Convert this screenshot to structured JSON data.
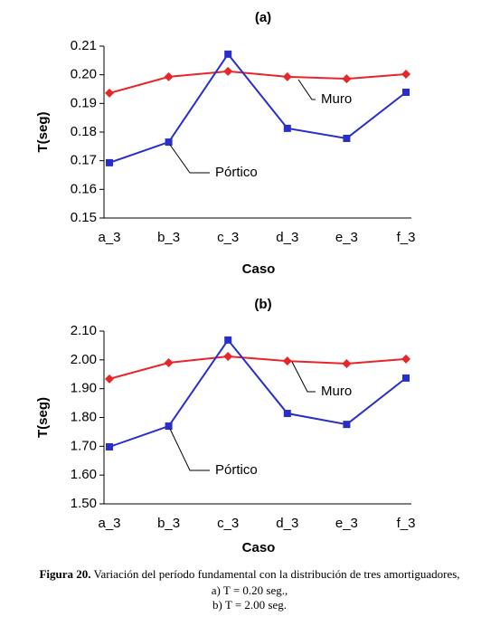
{
  "chart_data": [
    {
      "type": "line",
      "title": "(a)",
      "x_label": "Caso",
      "y_label": "T(seg)",
      "categories": [
        "a_3",
        "b_3",
        "c_3",
        "d_3",
        "e_3",
        "f_3"
      ],
      "series": [
        {
          "name": "Muro",
          "color": "#e8262a",
          "marker": "diamond",
          "values": [
            0.1936,
            0.1993,
            0.2012,
            0.1993,
            0.1986,
            0.2002
          ]
        },
        {
          "name": "Pórtico",
          "color": "#2a2ec8",
          "marker": "square",
          "values": [
            0.1693,
            0.1765,
            0.2072,
            0.1813,
            0.1778,
            0.1939
          ]
        }
      ],
      "ylim": [
        0.15,
        0.21
      ],
      "yticks": [
        {
          "value": 0.15,
          "label": "0.15"
        },
        {
          "value": 0.16,
          "label": "0.16"
        },
        {
          "value": 0.17,
          "label": "0.17"
        },
        {
          "value": 0.18,
          "label": "0.18"
        },
        {
          "value": 0.19,
          "label": "0.19"
        },
        {
          "value": 0.2,
          "label": "0.20"
        },
        {
          "value": 0.21,
          "label": "0.21"
        }
      ]
    },
    {
      "type": "line",
      "title": "(b)",
      "x_label": "Caso",
      "y_label": "T(seg)",
      "categories": [
        "a_3",
        "b_3",
        "c_3",
        "d_3",
        "e_3",
        "f_3"
      ],
      "series": [
        {
          "name": "Muro",
          "color": "#e8262a",
          "marker": "diamond",
          "values": [
            1.934,
            1.99,
            2.012,
            1.996,
            1.987,
            2.003
          ]
        },
        {
          "name": "Pórtico",
          "color": "#2a2ec8",
          "marker": "square",
          "values": [
            1.698,
            1.77,
            2.069,
            1.814,
            1.776,
            1.937
          ]
        }
      ],
      "ylim": [
        1.5,
        2.1
      ],
      "yticks": [
        {
          "value": 1.5,
          "label": "1.50"
        },
        {
          "value": 1.6,
          "label": "1.60"
        },
        {
          "value": 1.7,
          "label": "1.70"
        },
        {
          "value": 1.8,
          "label": "1.80"
        },
        {
          "value": 1.9,
          "label": "1.90"
        },
        {
          "value": 2.0,
          "label": "2.00"
        },
        {
          "value": 2.1,
          "label": "2.10"
        }
      ]
    }
  ],
  "caption": {
    "label": "Figura 20.",
    "text": "Variación del período fundamental con la distribución de tres amortiguadores,",
    "lines": [
      "a) T = 0.20 seg.,",
      "b) T = 2.00 seg."
    ]
  }
}
